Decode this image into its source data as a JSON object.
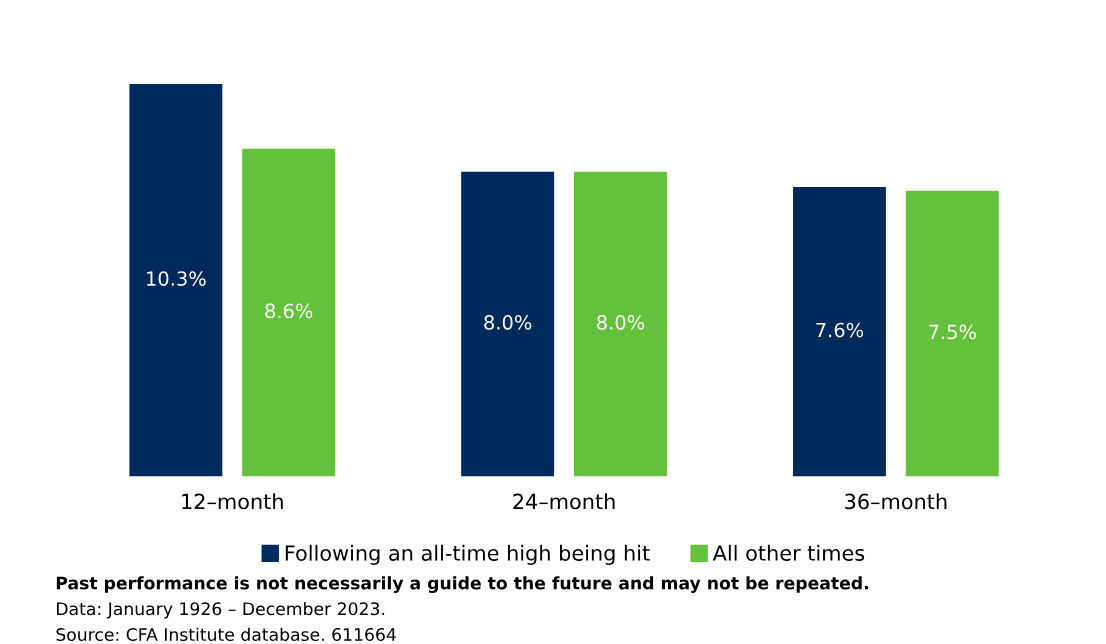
{
  "chart_data": {
    "type": "bar",
    "categories": [
      "12–month",
      "24–month",
      "36–month"
    ],
    "series": [
      {
        "name": "Following an all-time high being hit",
        "color": "#002a5c",
        "values": [
          10.3,
          8.0,
          7.6
        ],
        "value_labels": [
          "10.3%",
          "8.0%",
          "7.6%"
        ]
      },
      {
        "name": "All other times",
        "color": "#64c13c",
        "values": [
          8.6,
          8.0,
          7.5
        ],
        "value_labels": [
          "8.6%",
          "8.0%",
          "7.5%"
        ]
      }
    ],
    "legend": "bottom",
    "grid": false,
    "tick_labels": "x",
    "annotations": [
      "Past performance is not necessarily a guide to the future and may not be repeated.",
      "Data: January 1926 – December 2023.",
      "Source: CFA Institute database. 611664"
    ]
  }
}
